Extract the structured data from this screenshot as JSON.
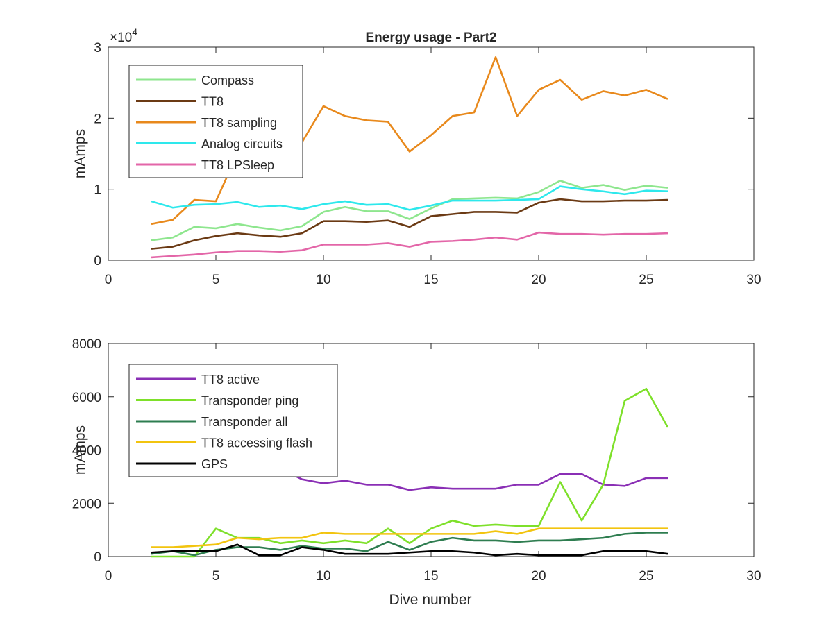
{
  "chart_data": [
    {
      "type": "line",
      "title": "Energy usage - Part2",
      "xlabel": "",
      "ylabel": "mAmps",
      "exponent_label": "×10",
      "exponent_power": "4",
      "xlim": [
        0,
        30
      ],
      "ylim": [
        0,
        30000
      ],
      "xticks": [
        0,
        5,
        10,
        15,
        20,
        25,
        30
      ],
      "yticks": [
        0,
        10000,
        20000,
        30000
      ],
      "ytick_labels": [
        "0",
        "1",
        "2",
        "3"
      ],
      "grid": false,
      "legend_position": "top-left",
      "x": [
        2,
        3,
        4,
        5,
        6,
        7,
        8,
        9,
        10,
        11,
        12,
        13,
        14,
        15,
        16,
        17,
        18,
        19,
        20,
        21,
        22,
        23,
        24,
        25,
        26
      ],
      "series": [
        {
          "name": "Compass",
          "color": "#8ee68e",
          "values": [
            2800,
            3200,
            4700,
            4500,
            5100,
            4600,
            4200,
            4800,
            6800,
            7500,
            6900,
            6900,
            5800,
            7300,
            8600,
            8700,
            8800,
            8700,
            9600,
            11200,
            10200,
            10600,
            9900,
            10500,
            10200
          ]
        },
        {
          "name": "TT8",
          "color": "#6b3a14",
          "values": [
            1600,
            1900,
            2800,
            3400,
            3800,
            3500,
            3300,
            3800,
            5500,
            5500,
            5400,
            5600,
            4700,
            6200,
            6500,
            6800,
            6800,
            6700,
            8100,
            8600,
            8300,
            8300,
            8400,
            8400,
            8500
          ]
        },
        {
          "name": "TT8 sampling",
          "color": "#e8891c",
          "values": [
            5100,
            5700,
            8500,
            8300,
            15000,
            17000,
            17200,
            16600,
            21700,
            20300,
            19700,
            19500,
            15300,
            17600,
            20300,
            20800,
            28600,
            20300,
            24000,
            25400,
            22600,
            23800,
            23200,
            24000,
            22700
          ]
        },
        {
          "name": "Analog circuits",
          "color": "#2ee8ec",
          "values": [
            8300,
            7400,
            7800,
            7900,
            8200,
            7500,
            7700,
            7200,
            7900,
            8300,
            7800,
            7900,
            7100,
            7700,
            8400,
            8400,
            8400,
            8500,
            8600,
            10400,
            10000,
            9700,
            9300,
            9800,
            9700
          ]
        },
        {
          "name": "TT8 LPSleep",
          "color": "#e366a8",
          "values": [
            400,
            600,
            800,
            1100,
            1300,
            1300,
            1200,
            1400,
            2200,
            2200,
            2200,
            2400,
            1900,
            2600,
            2700,
            2900,
            3200,
            2900,
            3900,
            3700,
            3700,
            3600,
            3700,
            3700,
            3800
          ]
        }
      ]
    },
    {
      "type": "line",
      "title": "",
      "xlabel": "Dive number",
      "ylabel": "mAmps",
      "xlim": [
        0,
        30
      ],
      "ylim": [
        0,
        8000
      ],
      "xticks": [
        0,
        5,
        10,
        15,
        20,
        25,
        30
      ],
      "yticks": [
        0,
        2000,
        4000,
        6000,
        8000
      ],
      "ytick_labels": [
        "0",
        "2000",
        "4000",
        "6000",
        "8000"
      ],
      "grid": false,
      "legend_position": "top-left",
      "x": [
        2,
        3,
        4,
        5,
        6,
        7,
        8,
        9,
        10,
        11,
        12,
        13,
        14,
        15,
        16,
        17,
        18,
        19,
        20,
        21,
        22,
        23,
        24,
        25,
        26
      ],
      "series": [
        {
          "name": "TT8 active",
          "color": "#8a2fb5",
          "values": [
            3300,
            3300,
            3300,
            3300,
            3300,
            3300,
            3300,
            2900,
            2750,
            2850,
            2700,
            2700,
            2500,
            2600,
            2550,
            2550,
            2550,
            2700,
            2700,
            3100,
            3100,
            2700,
            2650,
            2950,
            2950
          ]
        },
        {
          "name": "Transponder ping",
          "color": "#7ee02a",
          "values": [
            0,
            0,
            0,
            1050,
            700,
            700,
            500,
            600,
            500,
            600,
            500,
            1050,
            500,
            1050,
            1350,
            1150,
            1200,
            1150,
            1150,
            2800,
            1350,
            2700,
            5850,
            6300,
            4850
          ]
        },
        {
          "name": "Transponder all",
          "color": "#2e7d50",
          "values": [
            100,
            200,
            50,
            250,
            350,
            350,
            250,
            400,
            300,
            300,
            200,
            550,
            250,
            550,
            700,
            600,
            600,
            550,
            600,
            600,
            650,
            700,
            850,
            900,
            900
          ]
        },
        {
          "name": "TT8 accessing flash",
          "color": "#f2c40f",
          "values": [
            350,
            350,
            400,
            450,
            700,
            650,
            700,
            700,
            900,
            850,
            850,
            850,
            850,
            850,
            850,
            850,
            950,
            850,
            1050,
            1050,
            1050,
            1050,
            1050,
            1050,
            1050
          ]
        },
        {
          "name": "GPS",
          "color": "#000000",
          "values": [
            150,
            200,
            200,
            200,
            450,
            50,
            50,
            350,
            250,
            100,
            100,
            100,
            150,
            200,
            200,
            150,
            50,
            100,
            50,
            50,
            50,
            200,
            200,
            200,
            100
          ]
        }
      ]
    }
  ]
}
